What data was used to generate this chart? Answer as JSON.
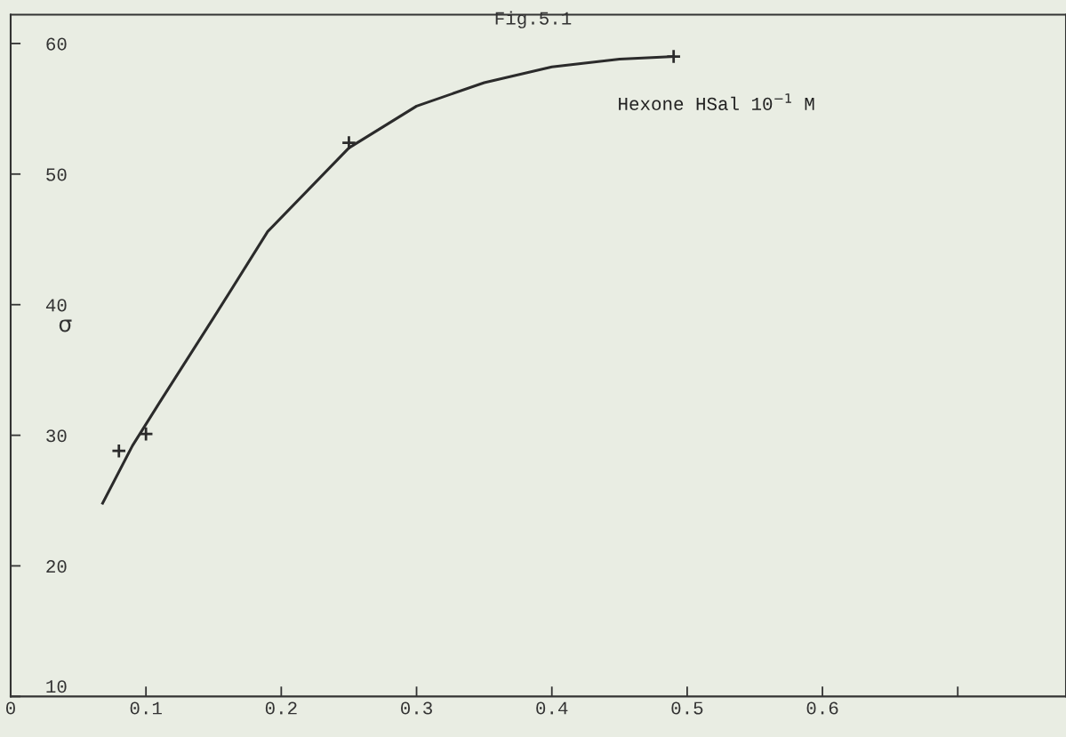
{
  "chart_data": {
    "type": "scatter",
    "title": "Fig.5.1",
    "ylabel": "σ",
    "annotations": [
      "Hexone HSal 10$^{−1}$ M"
    ],
    "xlim": [
      0,
      0.78
    ],
    "ylim": [
      10,
      62.2
    ],
    "xticks": [
      0,
      0.1,
      0.2,
      0.3,
      0.4,
      0.5,
      0.6,
      {
        "value": 0.7,
        "label": null
      }
    ],
    "yticks": [
      10,
      20,
      30,
      40,
      50,
      60
    ],
    "grid": false,
    "legend": false,
    "series": [
      {
        "type": "line",
        "color": "#2b2b2b",
        "marker": "none",
        "line_style": "solid",
        "x": [
          0.068,
          0.09,
          0.11,
          0.15,
          0.19,
          0.25,
          0.3,
          0.35,
          0.4,
          0.45,
          0.49
        ],
        "values": [
          24.8,
          29.2,
          32.5,
          39,
          45.6,
          52,
          55.2,
          57,
          58.2,
          58.8,
          59.0
        ]
      },
      {
        "color": "#2b2b2b",
        "marker": "cross",
        "x": [
          0.08,
          0.1,
          0.25,
          0.49
        ],
        "values": [
          28.8,
          30.1,
          52.4,
          59.0
        ]
      }
    ]
  }
}
